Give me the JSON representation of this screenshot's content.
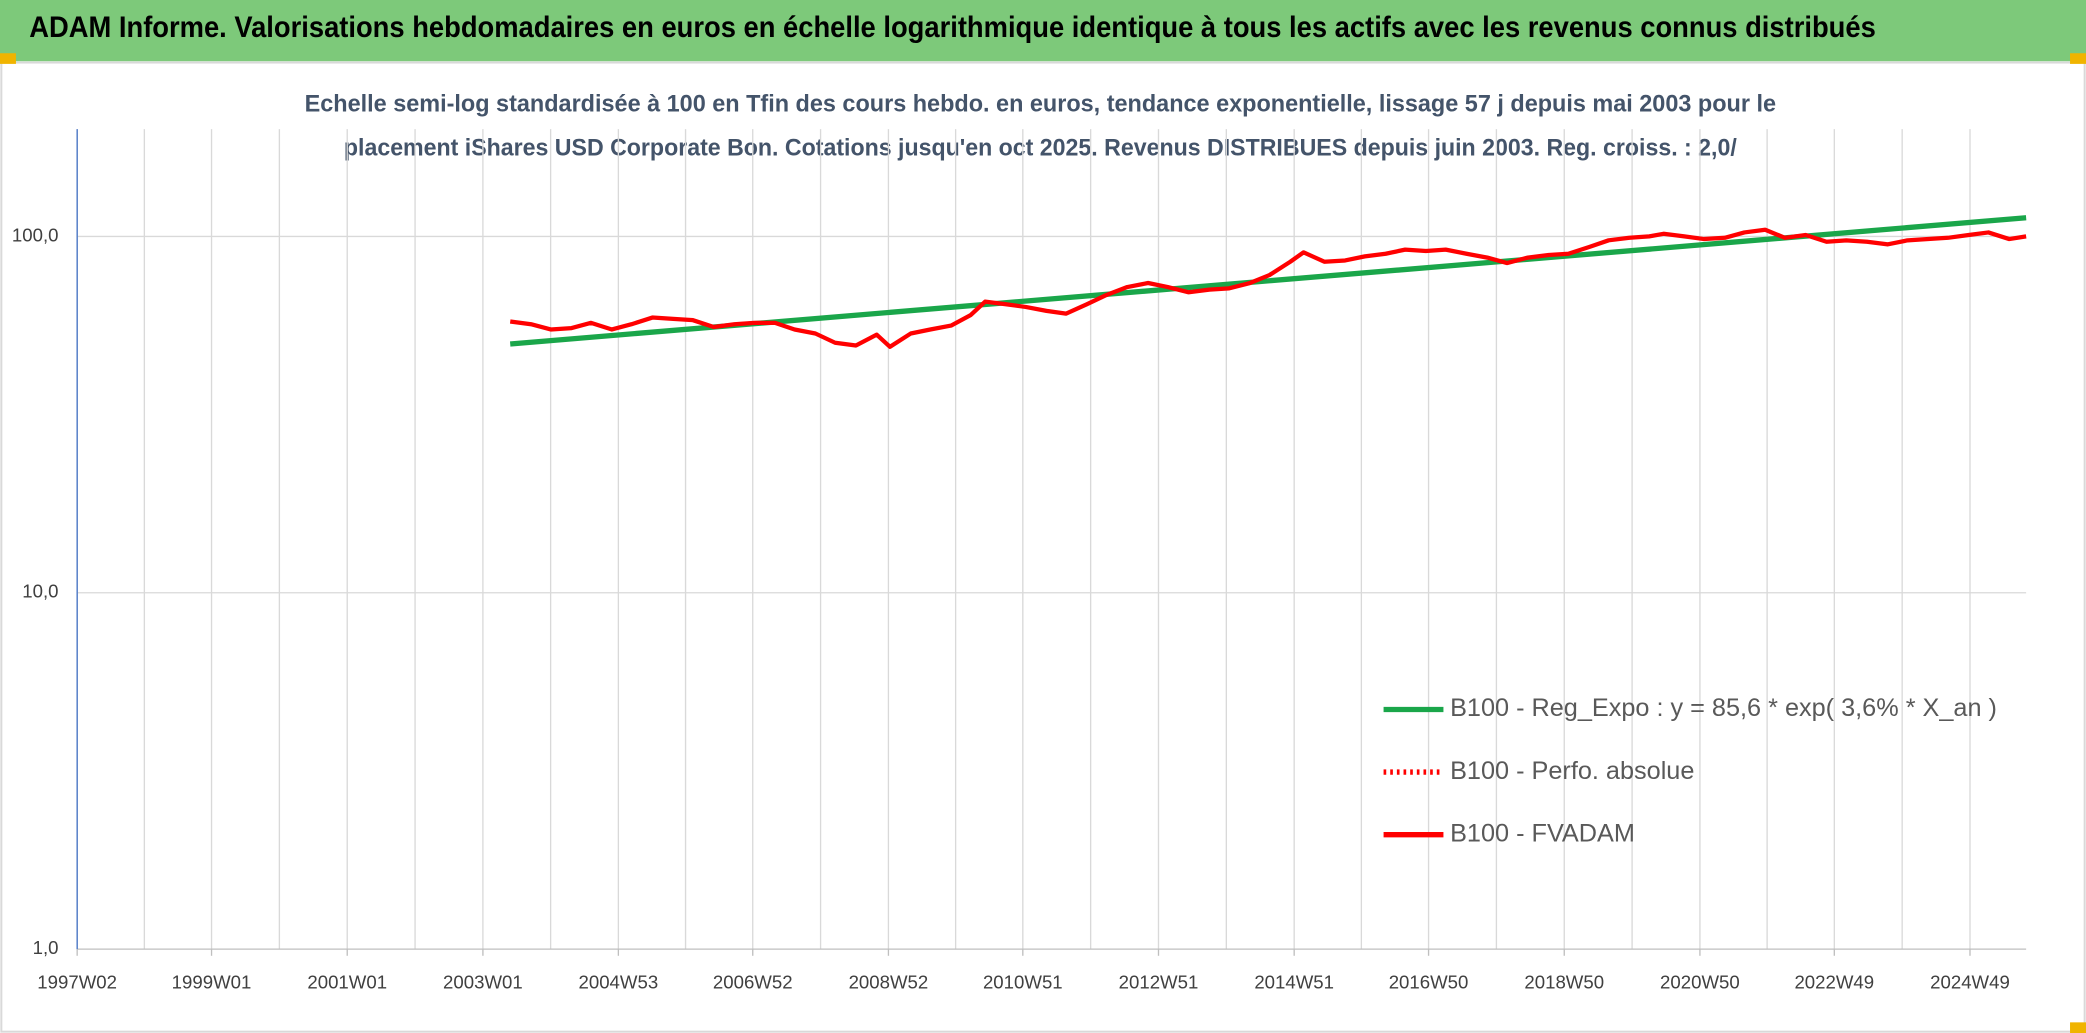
{
  "chart_data": {
    "type": "line",
    "title": "ADAM Informe. Valorisations hebdomadaires en euros en échelle logarithmique identique à tous les actifs avec les revenus connus distribués",
    "subtitle": [
      "Echelle semi-log standardisée à 100 en Tfin des cours hebdo. en euros, tendance exponentielle, lissage 57 j depuis mai 2003 pour le",
      "placement iShares USD Corporate Bon. Cotations jusqu'en oct 2025. Revenus DISTRIBUES depuis juin 2003. Reg. croiss. : 2,0/"
    ],
    "xlim": [
      "1997W02",
      "2025W40"
    ],
    "xticks": [
      "1997W02",
      "1999W01",
      "2001W01",
      "2003W01",
      "2004W53",
      "2006W52",
      "2008W52",
      "2010W51",
      "2012W51",
      "2014W51",
      "2016W50",
      "2018W50",
      "2020W50",
      "2022W49",
      "2024W49"
    ],
    "x_minor_grid": true,
    "ylim": [
      1,
      200
    ],
    "log_scale": true,
    "yticks": [
      {
        "value": 1,
        "label": "1,0"
      },
      {
        "value": 10,
        "label": "10,0"
      },
      {
        "value": 100,
        "label": "100,0"
      }
    ],
    "grid": true,
    "legend": "right",
    "series": [
      {
        "name": "B100 - Reg_Expo : y = 85,6 * exp( 3,6% *  X_an )",
        "color": "#1aa64a",
        "style": "solid",
        "x": [
          "2003W22",
          "2025W40"
        ],
        "values": [
          49.9,
          112.8
        ]
      },
      {
        "name": "B100 - Perfo. absolue",
        "color": "#ff0000",
        "style": "dotted",
        "x": [],
        "values": []
      },
      {
        "name": "B100 - FVADAM",
        "color": "#ff0000",
        "style": "solid",
        "x": [
          "2003W22",
          "2003W38",
          "2004W01",
          "2004W17",
          "2004W32",
          "2004W48",
          "2005W11",
          "2005W27",
          "2005W43",
          "2006W06",
          "2006W22",
          "2006W38",
          "2007W01",
          "2007W17",
          "2007W32",
          "2007W48",
          "2008W11",
          "2008W27",
          "2008W43",
          "2009W01",
          "2009W17",
          "2009W32",
          "2009W48",
          "2010W11",
          "2010W22",
          "2010W38",
          "2011W01",
          "2011W17",
          "2011W32",
          "2011W48",
          "2012W11",
          "2012W27",
          "2012W43",
          "2013W06",
          "2013W22",
          "2013W38",
          "2014W01",
          "2014W17",
          "2014W32",
          "2014W48",
          "2015W06",
          "2015W22",
          "2015W38",
          "2016W01",
          "2016W17",
          "2016W32",
          "2016W48",
          "2017W11",
          "2017W27",
          "2017W43",
          "2018W06",
          "2018W22",
          "2018W38",
          "2019W01",
          "2019W17",
          "2019W32",
          "2019W48",
          "2020W11",
          "2020W22",
          "2020W38",
          "2021W01",
          "2021W17",
          "2021W32",
          "2021W48",
          "2022W11",
          "2022W27",
          "2022W43",
          "2023W06",
          "2023W22",
          "2023W38",
          "2024W01",
          "2024W17",
          "2024W32",
          "2024W48",
          "2025W11",
          "2025W27",
          "2025W40"
        ],
        "values": [
          57.7,
          56.7,
          54.8,
          55.3,
          57.2,
          54.8,
          56.7,
          59.2,
          58.7,
          58.2,
          55.7,
          56.7,
          57.2,
          57.2,
          54.8,
          53.4,
          50.3,
          49.4,
          53.0,
          49.0,
          53.4,
          54.8,
          56.2,
          60.2,
          65.6,
          64.5,
          63.4,
          61.8,
          60.7,
          64.5,
          68.5,
          72.1,
          74.0,
          72.1,
          69.7,
          70.9,
          71.5,
          74.0,
          77.9,
          84.9,
          90.2,
          84.9,
          85.6,
          87.9,
          89.4,
          91.8,
          91.0,
          91.8,
          89.4,
          87.2,
          84.2,
          87.2,
          88.7,
          89.4,
          93.4,
          97.5,
          99.1,
          100,
          101.7,
          100,
          98.3,
          99.1,
          102.6,
          104.4,
          99.1,
          100.9,
          96.6,
          97.5,
          96.6,
          95.0,
          97.5,
          98.3,
          99.1,
          100.9,
          102.6,
          98.3,
          100
        ]
      }
    ]
  }
}
